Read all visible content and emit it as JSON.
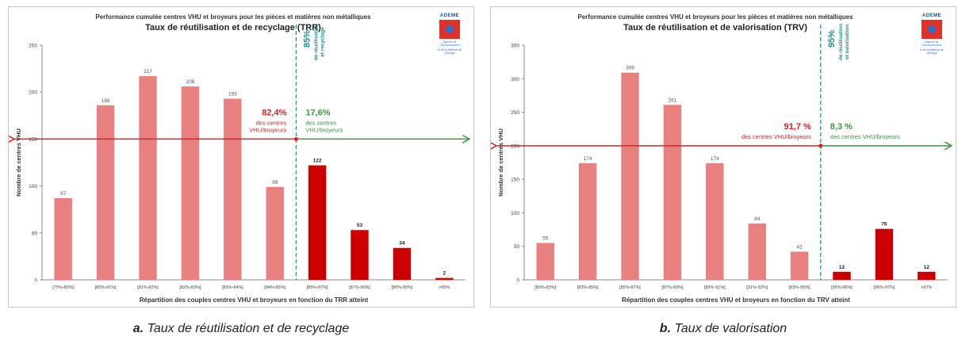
{
  "charts": [
    {
      "id": "a",
      "suptitle": "Performance cumulée centres VHU et broyeurs pour les pièces et matières non métalliques",
      "title": "Taux de réutilisation et de recyclage (TRR)",
      "logo": {
        "name": "ADEME",
        "line1": "Agence de l'Environnement",
        "line2": "et de la Maîtrise de l'Energie"
      },
      "threshold": {
        "value": "85%",
        "line1": "de réutilisation",
        "line2": "et recyclage"
      },
      "left_annotation": {
        "pct": "82,4%",
        "lines": [
          "des centres",
          "VHU/broyeurs"
        ]
      },
      "right_annotation": {
        "pct": "17,6%",
        "lines": [
          "des centres",
          "VHU/broyeurs"
        ]
      },
      "colors": {
        "below": "#e88080",
        "above": "#cc0000",
        "left_text": "#e02020",
        "right_text": "#3a9a3a",
        "threshold": "#1a8f8f"
      }
    },
    {
      "id": "b",
      "suptitle": "Performance cumulée centres VHU et broyeurs pour les pièces et matières non métalliques",
      "title": "Taux de réutilisation et de valorisation (TRV)",
      "logo": {
        "name": "ADEME",
        "line1": "Agence de l'Environnement",
        "line2": "et de la Maîtrise de l'Energie"
      },
      "threshold": {
        "value": "95%",
        "line1": "de réutilisation",
        "line2": "et valorisation"
      },
      "left_annotation": {
        "pct": "91,7 %",
        "lines": [
          "des centres VHU/broyeurs"
        ]
      },
      "right_annotation": {
        "pct": "8,3 %",
        "lines": [
          "des centres VHU/broyeurs"
        ]
      },
      "colors": {
        "below": "#e88080",
        "above": "#cc0000",
        "left_text": "#e02020",
        "right_text": "#3a9a3a",
        "threshold": "#1a8f8f"
      }
    }
  ],
  "chart_data": [
    {
      "type": "bar",
      "title": "Taux de réutilisation et de recyclage (TRR)",
      "xlabel": "Répartition des couples centres VHU et broyeurs en fonction du TRR atteint",
      "ylabel": "Nombre de centres VHU",
      "categories": [
        "[75%-80%[",
        "[80%-81%[",
        "[81%-82%[",
        "[82%-83%[",
        "[83%-84%[",
        "[84%-85%[",
        "[85%-87%[",
        "[87%-90%[",
        "[90%-95%[",
        ">95%"
      ],
      "values": [
        87,
        186,
        217,
        206,
        193,
        99,
        122,
        53,
        34,
        2
      ],
      "above_threshold_from_index": 6,
      "ylim": [
        0,
        250
      ],
      "yticks": [
        0,
        50,
        100,
        150,
        200,
        250
      ],
      "arrow_y": 150,
      "grid": false
    },
    {
      "type": "bar",
      "title": "Taux de réutilisation et de valorisation (TRV)",
      "xlabel": "Répartition des couples centres VHU et broyeurs en fonction du TRV atteint",
      "ylabel": "Nombre de centres VHU",
      "categories": [
        "[80%-83%[",
        "[83%-85%[",
        "[85%-87%[",
        "[87%-89%[",
        "[89%-91%[",
        "[91%-93%[",
        "[93%-95%[",
        "[95%-96%[",
        "[96%-97%[",
        ">97%"
      ],
      "values": [
        55,
        174,
        309,
        261,
        174,
        84,
        42,
        12,
        76,
        12
      ],
      "above_threshold_from_index": 7,
      "ylim": [
        0,
        350
      ],
      "yticks": [
        0,
        50,
        100,
        150,
        200,
        250,
        300,
        350
      ],
      "arrow_y": 200,
      "grid": false
    }
  ],
  "captions": [
    {
      "letter": "a.",
      "text": "Taux de réutilisation et de recyclage"
    },
    {
      "letter": "b.",
      "text": "Taux de valorisation"
    }
  ]
}
